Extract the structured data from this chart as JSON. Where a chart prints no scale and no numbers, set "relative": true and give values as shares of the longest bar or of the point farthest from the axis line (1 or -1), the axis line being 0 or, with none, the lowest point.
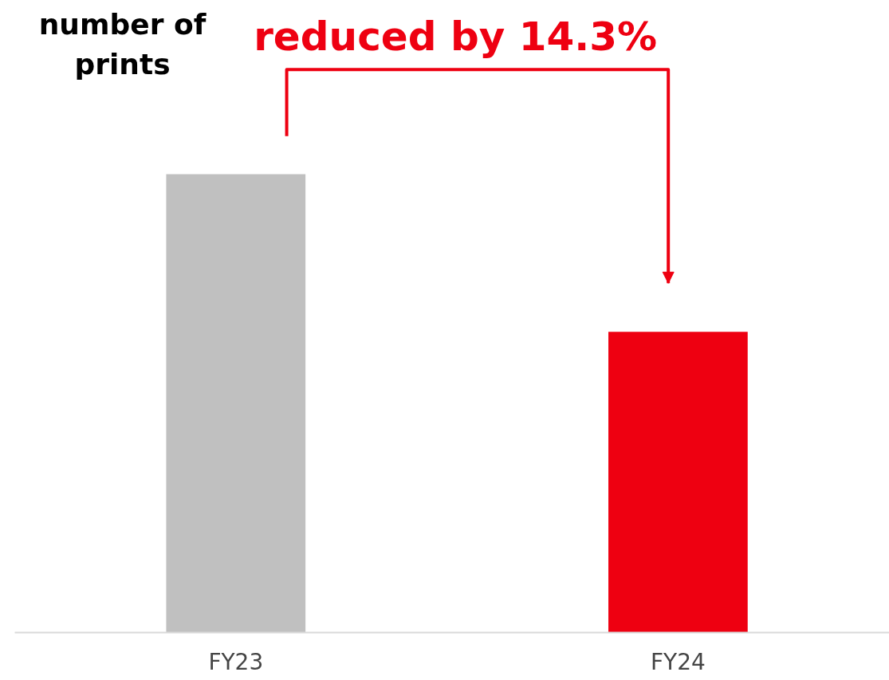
{
  "chart_data": {
    "type": "bar",
    "relative": true,
    "ylabel": "number of prints",
    "categories": [
      "FY23",
      "FY24"
    ],
    "values": [
      1,
      0.656
    ],
    "colors": [
      "#c0c0c0",
      "#ee0011"
    ],
    "annotations": [
      "reduced by 14.3%"
    ],
    "grid": false
  }
}
